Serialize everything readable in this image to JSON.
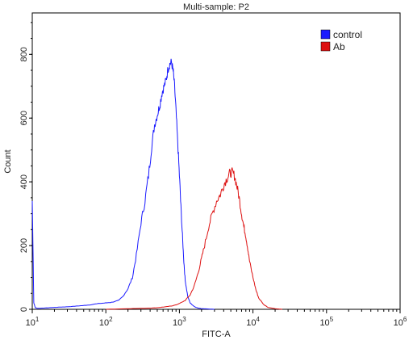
{
  "chart_data": {
    "type": "line",
    "title": "Multi-sample: P2",
    "xlabel": "FITC-A",
    "ylabel": "Count",
    "x_scale": "log",
    "xlim": [
      10,
      1000000
    ],
    "ylim": [
      0,
      930
    ],
    "x_ticks": [
      {
        "value": 10,
        "base": "10",
        "exp": "1"
      },
      {
        "value": 100,
        "base": "10",
        "exp": "2"
      },
      {
        "value": 1000,
        "base": "10",
        "exp": "3"
      },
      {
        "value": 10000,
        "base": "10",
        "exp": "4"
      },
      {
        "value": 100000,
        "base": "10",
        "exp": "5"
      },
      {
        "value": 1000000,
        "base": "10",
        "exp": "6"
      }
    ],
    "y_ticks": [
      "0",
      "200",
      "400",
      "600",
      "800"
    ],
    "y_tick_values": [
      0,
      200,
      400,
      600,
      800
    ],
    "legend_position": "top-right",
    "series": [
      {
        "name": "control",
        "color": "#1a1aff",
        "x": [
          10,
          10.5,
          11,
          12,
          14,
          17,
          20,
          25,
          30,
          40,
          50,
          60,
          80,
          100,
          120,
          150,
          170,
          200,
          230,
          260,
          300,
          340,
          380,
          420,
          460,
          500,
          540,
          580,
          620,
          660,
          700,
          740,
          780,
          820,
          860,
          900,
          950,
          1000,
          1050,
          1100,
          1150,
          1200,
          1300,
          1400,
          1600,
          1800,
          2000,
          2500,
          3000
        ],
        "y": [
          340,
          20,
          5,
          3,
          4,
          5,
          6,
          7,
          8,
          10,
          12,
          14,
          18,
          20,
          22,
          28,
          40,
          65,
          100,
          170,
          270,
          340,
          420,
          510,
          580,
          610,
          640,
          680,
          700,
          720,
          755,
          770,
          775,
          750,
          700,
          620,
          520,
          420,
          320,
          230,
          150,
          90,
          40,
          20,
          8,
          4,
          2,
          1,
          0
        ]
      },
      {
        "name": "Ab",
        "color": "#dd1111",
        "x": [
          100,
          200,
          300,
          400,
          500,
          600,
          700,
          800,
          900,
          1000,
          1200,
          1400,
          1600,
          1800,
          2000,
          2200,
          2500,
          2800,
          3200,
          3600,
          4000,
          4400,
          4800,
          5200,
          5600,
          6000,
          6500,
          7000,
          7500,
          8000,
          8500,
          9000,
          10000,
          11000,
          12000,
          14000,
          16000,
          20000,
          25000
        ],
        "y": [
          0,
          2,
          3,
          4,
          5,
          7,
          9,
          11,
          14,
          18,
          28,
          45,
          75,
          115,
          160,
          200,
          260,
          300,
          340,
          360,
          390,
          410,
          425,
          430,
          420,
          390,
          350,
          300,
          260,
          230,
          190,
          150,
          100,
          60,
          35,
          15,
          6,
          2,
          0
        ]
      }
    ]
  }
}
